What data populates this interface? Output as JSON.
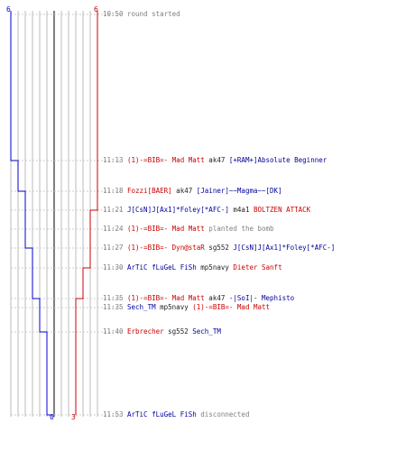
{
  "team_counts": {
    "blue_start": "6",
    "red_start": "6",
    "blue_end": "0",
    "red_end": "3"
  },
  "colors": {
    "blue_team": "#0000cc",
    "red_team": "#cc0000",
    "grid": "#bbbbbb",
    "center": "#555555",
    "dash": "#cccccc"
  },
  "events": [
    {
      "time": "10:50",
      "parts": [
        {
          "t": "round started",
          "c": "gray"
        }
      ]
    },
    {
      "time": "11:13",
      "parts": [
        {
          "t": "(1)-=BIB=- Mad Matt",
          "c": "red"
        },
        {
          "t": " ak47 ",
          "c": "blk"
        },
        {
          "t": "[+RAM+]Absolute Beginner",
          "c": "blue"
        }
      ]
    },
    {
      "time": "11:18",
      "parts": [
        {
          "t": "Fozzi[BAER]",
          "c": "red"
        },
        {
          "t": " ak47 ",
          "c": "blk"
        },
        {
          "t": "[Jainer]~~Magma~~[DK]",
          "c": "blue"
        }
      ]
    },
    {
      "time": "11:21",
      "parts": [
        {
          "t": "J[CsN]J[Ax1]*Foley[*AFC-]",
          "c": "blue"
        },
        {
          "t": " m4a1 ",
          "c": "blk"
        },
        {
          "t": "BOLTZEN ATTACK",
          "c": "red"
        }
      ]
    },
    {
      "time": "11:24",
      "parts": [
        {
          "t": "(1)-=BIB=- Mad Matt",
          "c": "red"
        },
        {
          "t": " planted the bomb",
          "c": "gray"
        }
      ]
    },
    {
      "time": "11:27",
      "parts": [
        {
          "t": "(1)-=BIB=- Dyn@staR",
          "c": "red"
        },
        {
          "t": " sg552 ",
          "c": "blk"
        },
        {
          "t": "J[CsN]J[Ax1]*Foley[*AFC-]",
          "c": "blue"
        }
      ]
    },
    {
      "time": "11:30",
      "parts": [
        {
          "t": "ArTiC fLuGeL FiSh",
          "c": "blue"
        },
        {
          "t": " mp5navy ",
          "c": "blk"
        },
        {
          "t": "Dieter Sanft",
          "c": "red"
        }
      ]
    },
    {
      "time": "11:35",
      "parts": [
        {
          "t": "(1)-=BIB=- Mad Matt",
          "c": "red"
        },
        {
          "t": " ak47 ",
          "c": "blk"
        },
        {
          "t": "-|SoI|- Mephisto",
          "c": "blue"
        }
      ]
    },
    {
      "time": "11:35",
      "parts": [
        {
          "t": "Sech_TM",
          "c": "blue"
        },
        {
          "t": " mp5navy ",
          "c": "blk"
        },
        {
          "t": "(1)-=BIB=- Mad Matt",
          "c": "red"
        }
      ]
    },
    {
      "time": "11:40",
      "parts": [
        {
          "t": "Erbrecher",
          "c": "red"
        },
        {
          "t": " sg552 ",
          "c": "blk"
        },
        {
          "t": "Sech_TM",
          "c": "blue"
        }
      ]
    },
    {
      "time": "11:53",
      "parts": [
        {
          "t": "ArTiC fLuGeL FiSh",
          "c": "blue"
        },
        {
          "t": " disconnected",
          "c": "gray"
        }
      ]
    }
  ]
}
